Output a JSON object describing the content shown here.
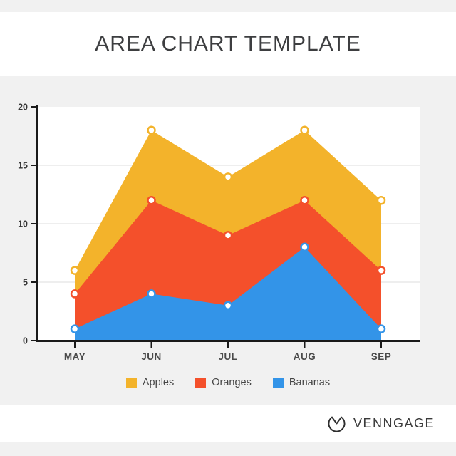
{
  "chart_data": {
    "type": "area",
    "title": "AREA CHART TEMPLATE",
    "categories": [
      "MAY",
      "JUN",
      "JUL",
      "AUG",
      "SEP"
    ],
    "series": [
      {
        "name": "Apples",
        "color": "#F3B32B",
        "values": [
          6,
          18,
          14,
          18,
          12
        ]
      },
      {
        "name": "Oranges",
        "color": "#F4502B",
        "values": [
          4,
          12,
          9,
          12,
          6
        ]
      },
      {
        "name": "Bananas",
        "color": "#3394E8",
        "values": [
          1,
          4,
          3,
          8,
          1
        ]
      }
    ],
    "xlabel": "",
    "ylabel": "",
    "ylim": [
      0,
      20
    ],
    "yticks": [
      0,
      5,
      10,
      15,
      20
    ],
    "grid": true,
    "legend_position": "bottom",
    "marker": {
      "shape": "circle",
      "fill": "#FFFFFF"
    },
    "colors": {
      "axis": "#1A1A1A",
      "grid": "#E9E9E9",
      "plot_bg": "#FFFFFF",
      "page_bg": "#F1F1F1",
      "tick_label": "#333333",
      "category_label": "#4A4A4A"
    }
  },
  "footer": {
    "brand": "VENNGAGE",
    "logo_icon": "venngage-clock-icon"
  }
}
